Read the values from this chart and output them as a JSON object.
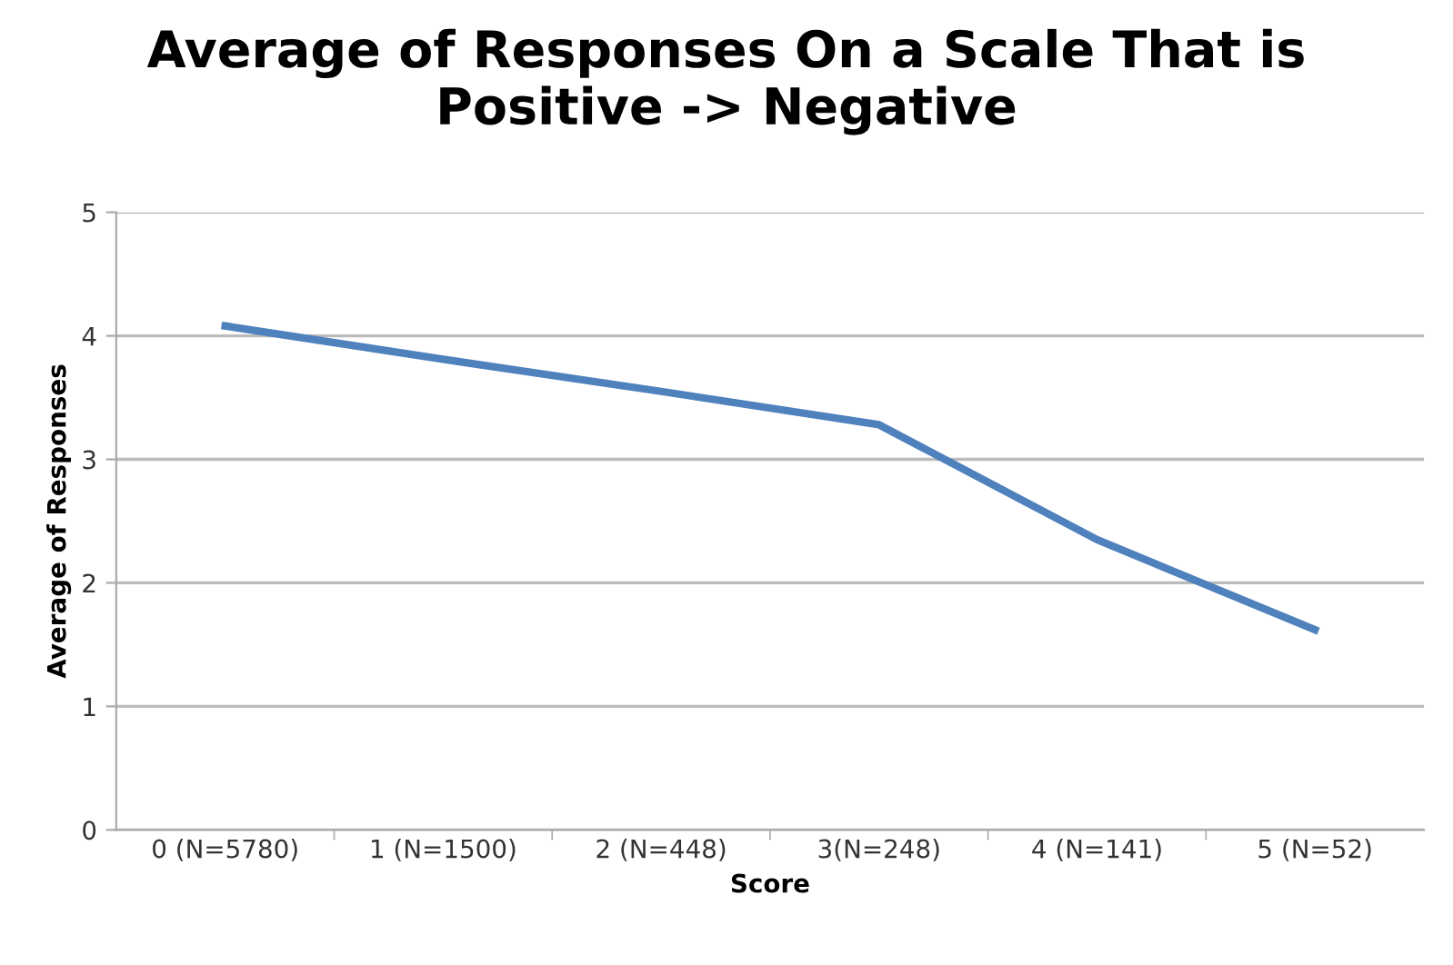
{
  "chart_data": {
    "type": "line",
    "title": "Average of Responses On a Scale That is\nPositive -> Negative",
    "xlabel": "Score",
    "ylabel": "Average of Responses",
    "categories": [
      "0 (N=5780)",
      "1 (N=1500)",
      "2 (N=448)",
      "3(N=248)",
      "4 (N=141)",
      "5 (N=52)"
    ],
    "series": [
      {
        "color": "#4f81bd",
        "values": [
          4.08,
          3.81,
          3.55,
          3.28,
          2.35,
          1.62
        ]
      }
    ],
    "ylim": [
      0,
      5
    ],
    "yticks": [
      0,
      1,
      2,
      3,
      4,
      5
    ],
    "grid": "y",
    "legend": false,
    "marker": "none",
    "line_style": "solid"
  }
}
